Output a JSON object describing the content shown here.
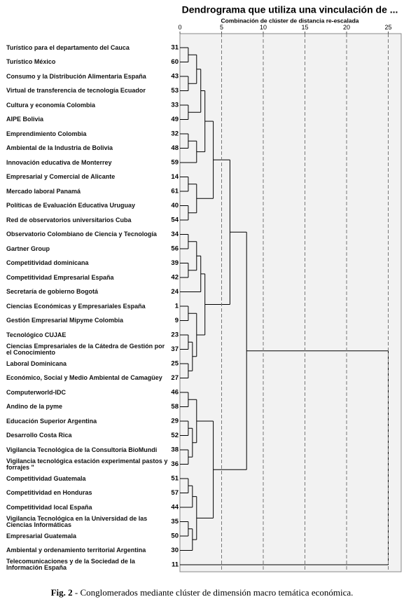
{
  "chart_data": {
    "type": "dendrogram",
    "title": "Dendrograma que utiliza una vinculación de ...",
    "subtitle": "Combinación de clúster de distancia re-escalada",
    "xlim": [
      0,
      25
    ],
    "xticks": [
      0,
      5,
      10,
      15,
      20,
      25
    ],
    "grid": true,
    "color": "#000000",
    "caption": {
      "label": "Fig. 2",
      "text": "- Conglomerados mediante clúster de dimensión macro temática económica."
    },
    "tree": {
      "height": 25,
      "children": [
        {
          "height": 8,
          "children": [
            {
              "height": 6,
              "children": [
                {
                  "height": 4,
                  "children": [
                    {
                      "height": 3,
                      "children": [
                        {
                          "height": 2.5,
                          "children": [
                            {
                              "height": 2,
                              "children": [
                                {
                                  "height": 1,
                                  "children": [
                                    {
                                      "label": "Turístico para el departamento del Cauca",
                                      "id": 31
                                    },
                                    {
                                      "label": "Turístico México",
                                      "id": 60
                                    }
                                  ]
                                },
                                {
                                  "height": 1,
                                  "children": [
                                    {
                                      "label": "Consumo y la Distribución Alimentaria España",
                                      "id": 43
                                    },
                                    {
                                      "label": "Virtual de transferencia de tecnología Ecuador",
                                      "id": 53
                                    }
                                  ]
                                }
                              ]
                            },
                            {
                              "height": 1,
                              "children": [
                                {
                                  "label": "Cultura y economía Colombia",
                                  "id": 33
                                },
                                {
                                  "label": "AIPE Bolivia",
                                  "id": 49
                                }
                              ]
                            }
                          ]
                        },
                        {
                          "height": 2,
                          "children": [
                            {
                              "height": 1,
                              "children": [
                                {
                                  "label": "Emprendimiento Colombia",
                                  "id": 32
                                },
                                {
                                  "label": "Ambiental de la Industria de Bolivia",
                                  "id": 48
                                }
                              ]
                            },
                            {
                              "label": "Innovación educativa de Monterrey",
                              "id": 59
                            }
                          ]
                        }
                      ]
                    },
                    {
                      "height": 2,
                      "children": [
                        {
                          "height": 1,
                          "children": [
                            {
                              "label": "Empresarial y Comercial de Alicante",
                              "id": 14
                            },
                            {
                              "label": "Mercado laboral Panamá",
                              "id": 61
                            }
                          ]
                        },
                        {
                          "height": 1,
                          "children": [
                            {
                              "label": "Políticas de Evaluación Educativa Uruguay",
                              "id": 40
                            },
                            {
                              "label": "Red de observatorios universitarios Cuba",
                              "id": 54
                            }
                          ]
                        }
                      ]
                    }
                  ]
                },
                {
                  "height": 3,
                  "children": [
                    {
                      "height": 2.5,
                      "children": [
                        {
                          "height": 2,
                          "children": [
                            {
                              "height": 1,
                              "children": [
                                {
                                  "label": "Observatorio Colombiano de Ciencia y Tecnología",
                                  "id": 34
                                },
                                {
                                  "label": "Gartner Group",
                                  "id": 56
                                }
                              ]
                            },
                            {
                              "height": 1,
                              "children": [
                                {
                                  "label": "Competitividad dominicana",
                                  "id": 39
                                },
                                {
                                  "label": "Competitividad Empresarial España",
                                  "id": 42
                                }
                              ]
                            }
                          ]
                        },
                        {
                          "label": "Secretaría de gobierno Bogotá",
                          "id": 24
                        }
                      ]
                    },
                    {
                      "height": 2,
                      "children": [
                        {
                          "height": 1,
                          "children": [
                            {
                              "label": "Ciencias Económicas y Empresariales España",
                              "id": 1
                            },
                            {
                              "label": "Gestión Empresarial Mipyme Colombia",
                              "id": 9
                            }
                          ]
                        },
                        {
                          "height": 1.5,
                          "children": [
                            {
                              "height": 1,
                              "children": [
                                {
                                  "label": "Tecnológico CUJAE",
                                  "id": 23
                                },
                                {
                                  "label": "Ciencias Empresariales de la Cátedra de Gestión por el Conocimiento",
                                  "id": 37
                                }
                              ]
                            },
                            {
                              "height": 1,
                              "children": [
                                {
                                  "label": "Laboral Dominicana",
                                  "id": 25
                                },
                                {
                                  "label": "Económico, Social y Medio Ambiental de Camagüey",
                                  "id": 27
                                }
                              ]
                            }
                          ]
                        }
                      ]
                    }
                  ]
                }
              ]
            },
            {
              "height": 4,
              "children": [
                {
                  "height": 2,
                  "children": [
                    {
                      "height": 1,
                      "children": [
                        {
                          "label": "Computerworld-IDC",
                          "id": 46
                        },
                        {
                          "label": "Andino de la pyme",
                          "id": 58
                        }
                      ]
                    },
                    {
                      "height": 1.5,
                      "children": [
                        {
                          "height": 1,
                          "children": [
                            {
                              "label": "Educación Superior Argentina",
                              "id": 29
                            },
                            {
                              "label": "Desarrollo Costa Rica",
                              "id": 52
                            }
                          ]
                        },
                        {
                          "height": 1,
                          "children": [
                            {
                              "label": "Vigilancia Tecnológica de la Consultoría BioMundi",
                              "id": 38
                            },
                            {
                              "label": "Vigilancia tecnológica estación experimental pastos y forrajes \"",
                              "id": 36
                            }
                          ]
                        }
                      ]
                    }
                  ]
                },
                {
                  "height": 2,
                  "children": [
                    {
                      "height": 1.5,
                      "children": [
                        {
                          "height": 1,
                          "children": [
                            {
                              "label": "Competitividad Guatemala",
                              "id": 51
                            },
                            {
                              "label": "Competitividad en Honduras",
                              "id": 57
                            }
                          ]
                        },
                        {
                          "label": "Competitividad local España",
                          "id": 44
                        }
                      ]
                    },
                    {
                      "height": 1.5,
                      "children": [
                        {
                          "height": 1,
                          "children": [
                            {
                              "label": "Vigilancia Tecnológica en la Universidad de las Ciencias Informáticas",
                              "id": 35
                            },
                            {
                              "label": "Empresarial Guatemala",
                              "id": 50
                            }
                          ]
                        },
                        {
                          "label": "Ambiental y ordenamiento territorial Argentina",
                          "id": 30
                        }
                      ]
                    }
                  ]
                }
              ]
            }
          ]
        },
        {
          "label": "Telecomunicaciones y de la Sociedad de la Información España",
          "id": 11
        }
      ]
    }
  }
}
